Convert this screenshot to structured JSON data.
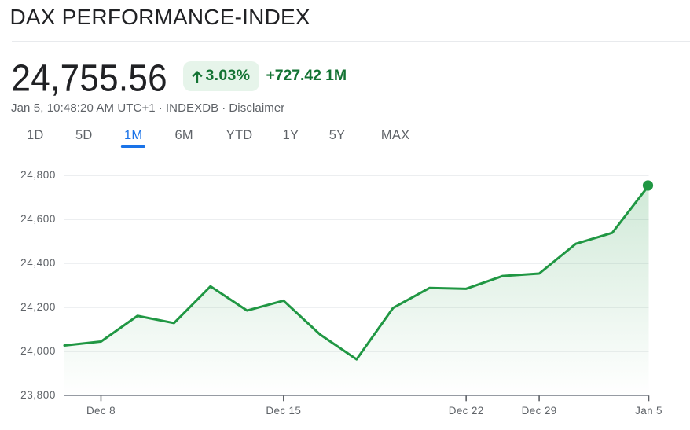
{
  "header": {
    "title": "DAX PERFORMANCE-INDEX"
  },
  "quote": {
    "price": "24,755.56",
    "change_percent": "3.03%",
    "arrow_up": "↑",
    "change_absolute": "+727.42 1M",
    "timestamp": "Jan 5, 10:48:20 AM UTC+1",
    "separator": "·",
    "exchange": "INDEXDB",
    "disclaimer_label": "Disclaimer"
  },
  "tabs": [
    {
      "label": "1D",
      "active": false
    },
    {
      "label": "5D",
      "active": false
    },
    {
      "label": "1M",
      "active": true
    },
    {
      "label": "6M",
      "active": false
    },
    {
      "label": "YTD",
      "active": false
    },
    {
      "label": "1Y",
      "active": false
    },
    {
      "label": "5Y",
      "active": false
    },
    {
      "label": "MAX",
      "active": false
    }
  ],
  "colors": {
    "accent_blue": "#1a73e8",
    "line_green": "#209743",
    "text_green": "#137333",
    "badge_bg": "#e6f4ea",
    "text_dark": "#202124",
    "text_gray": "#5f6368",
    "gridline": "#eceef0",
    "axis_line": "#878d96",
    "tick": "#5f6368"
  },
  "chart_data": {
    "type": "line",
    "title": "DAX PERFORMANCE-INDEX 1M price chart",
    "xlabel": "",
    "ylabel": "",
    "ylim": [
      23800,
      24800
    ],
    "grid": true,
    "legend": "none",
    "series": [
      {
        "name": "DAX",
        "x": [
          "Dec 5",
          "Dec 8",
          "Dec 9",
          "Dec 10",
          "Dec 11",
          "Dec 12",
          "Dec 15",
          "Dec 16",
          "Dec 17",
          "Dec 18",
          "Dec 19",
          "Dec 22",
          "Dec 23",
          "Dec 29",
          "Dec 30",
          "Jan 2",
          "Jan 5"
        ],
        "values": [
          24028,
          24046,
          24163,
          24130,
          24297,
          24187,
          24232,
          24078,
          23965,
          24199,
          24290,
          24286,
          24344,
          24355,
          24490,
          24540,
          24755.56
        ]
      }
    ],
    "x_tick_labels": [
      "Dec 8",
      "Dec 15",
      "Dec 22",
      "Dec 29",
      "Jan 5"
    ],
    "x_tick_indices": [
      1,
      6,
      11,
      13,
      16
    ],
    "y_tick_labels": [
      "23,800",
      "24,000",
      "24,200",
      "24,400",
      "24,600",
      "24,800"
    ],
    "y_tick_values": [
      23800,
      24000,
      24200,
      24400,
      24600,
      24800
    ],
    "end_marker": true
  }
}
